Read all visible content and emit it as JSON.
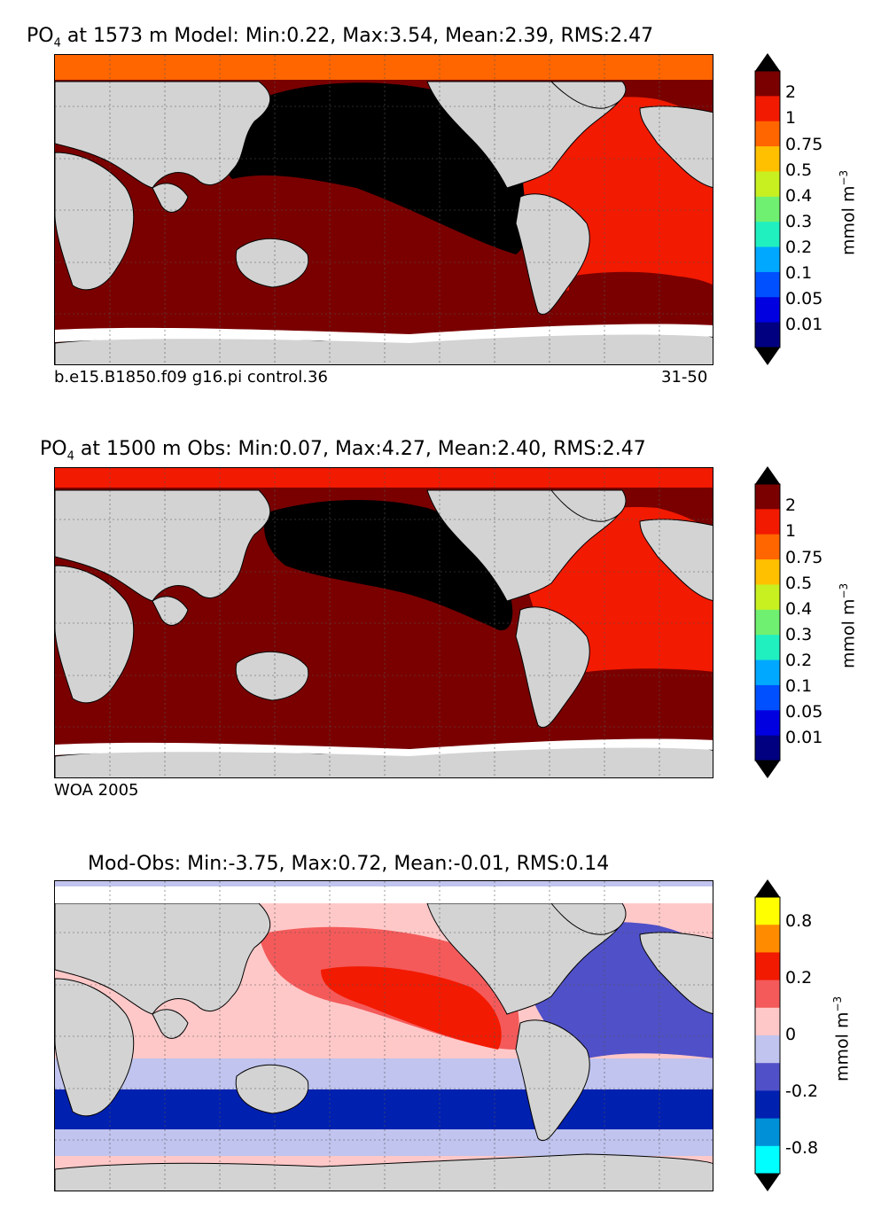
{
  "panels": [
    {
      "title_prefix": "PO",
      "title_sub": "4",
      "title_rest": " at 1573 m Model: Min:0.22, Max:3.54, Mean:2.39, RMS:2.47",
      "footer_left": "b.e15.B1850.f09 g16.pi control.36",
      "footer_right": "31-50",
      "units_base": "mmol m",
      "units_sup": "−3",
      "colorbar": {
        "labels": [
          "2",
          "1",
          "0.75",
          "0.5",
          "0.4",
          "0.3",
          "0.2",
          "0.1",
          "0.05",
          "0.01"
        ],
        "colors": [
          "#7a0000",
          "#f21a00",
          "#ff6600",
          "#ffc000",
          "#c8f020",
          "#70f070",
          "#20f0c0",
          "#00a8ff",
          "#0050ff",
          "#0000e0",
          "#000080"
        ]
      }
    },
    {
      "title_prefix": "PO",
      "title_sub": "4",
      "title_rest": " at 1500 m Obs: Min:0.07, Max:4.27, Mean:2.40, RMS:2.47",
      "footer_left": "WOA 2005",
      "footer_right": "",
      "units_base": "mmol m",
      "units_sup": "−3",
      "colorbar": {
        "labels": [
          "2",
          "1",
          "0.75",
          "0.5",
          "0.4",
          "0.3",
          "0.2",
          "0.1",
          "0.05",
          "0.01"
        ],
        "colors": [
          "#7a0000",
          "#f21a00",
          "#ff6600",
          "#ffc000",
          "#c8f020",
          "#70f070",
          "#20f0c0",
          "#00a8ff",
          "#0050ff",
          "#0000e0",
          "#000080"
        ]
      }
    },
    {
      "title_prefix": "Mod-Obs: Min:-3.75, Max:0.72, Mean:-0.01, RMS:0.14",
      "title_sub": "",
      "title_rest": "",
      "footer_left": "",
      "footer_right": "",
      "units_base": "mmol m",
      "units_sup": "−3",
      "colorbar": {
        "labels": [
          "0.8",
          "0.2",
          "0",
          "-0.2",
          "-0.8"
        ],
        "colors": [
          "#ffff00",
          "#ff8c00",
          "#f21a00",
          "#f45a5a",
          "#ffc8c8",
          "#c0c4ee",
          "#5050c8",
          "#0020b0",
          "#0090d8",
          "#00ffff"
        ]
      }
    }
  ],
  "map_colors": {
    "land": "#d3d3d3",
    "nodata": "#ffffff",
    "coast": "#000000"
  }
}
